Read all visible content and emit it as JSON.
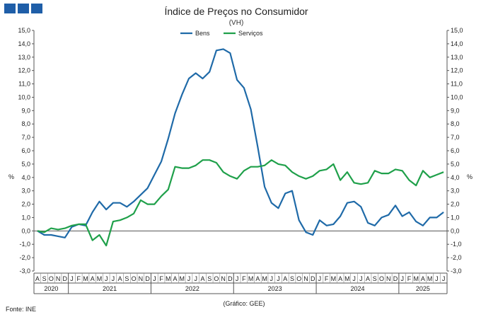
{
  "header": {
    "blocks": [
      "block-1",
      "block-2",
      "block-3"
    ],
    "block_color": "#1f5ea8"
  },
  "footer": {
    "source": "Fonte: INE",
    "credit": "(Gráfico: GEE)"
  },
  "chart_data": {
    "type": "line",
    "title": "Índice de Preços no Consumidor",
    "subtitle": "(VH)",
    "ylabel_left": "%",
    "ylabel_right": "%",
    "ylim": [
      -3,
      15
    ],
    "ytick_step": 1,
    "ytick_labels": [
      "-3,0",
      "-2,0",
      "-1,0",
      "0,0",
      "1,0",
      "2,0",
      "3,0",
      "4,0",
      "5,0",
      "6,0",
      "7,0",
      "8,0",
      "9,0",
      "10,0",
      "11,0",
      "12,0",
      "13,0",
      "14,0",
      "15,0"
    ],
    "grid": false,
    "legend_position": "top-center",
    "month_labels": [
      "A",
      "S",
      "O",
      "N",
      "D",
      "J",
      "F",
      "M",
      "A",
      "M",
      "J",
      "J",
      "A",
      "S",
      "O",
      "N",
      "D",
      "J",
      "F",
      "M",
      "A",
      "M",
      "J",
      "J",
      "A",
      "S",
      "O",
      "N",
      "D",
      "J",
      "F",
      "M",
      "A",
      "M",
      "J",
      "J",
      "A",
      "S",
      "O",
      "N",
      "D",
      "J",
      "F",
      "M",
      "A",
      "M",
      "J",
      "J",
      "A",
      "S",
      "O",
      "N",
      "D",
      "J",
      "F",
      "M",
      "A",
      "M",
      "J",
      "J"
    ],
    "years": [
      {
        "label": "2020",
        "start": 0,
        "end": 4
      },
      {
        "label": "2021",
        "start": 5,
        "end": 16
      },
      {
        "label": "2022",
        "start": 17,
        "end": 28
      },
      {
        "label": "2023",
        "start": 29,
        "end": 40
      },
      {
        "label": "2024",
        "start": 41,
        "end": 52
      },
      {
        "label": "2025",
        "start": 53,
        "end": 59
      }
    ],
    "series": [
      {
        "name": "Bens",
        "color": "#1f6aa8",
        "values": [
          0.0,
          -0.3,
          -0.3,
          -0.4,
          -0.5,
          0.3,
          0.5,
          0.4,
          1.4,
          2.2,
          1.6,
          2.1,
          2.1,
          1.8,
          2.2,
          2.7,
          3.2,
          4.2,
          5.2,
          6.9,
          8.8,
          10.2,
          11.4,
          11.8,
          11.4,
          11.9,
          13.5,
          13.6,
          13.3,
          11.3,
          10.7,
          9.1,
          6.3,
          3.3,
          2.1,
          1.7,
          2.8,
          3.0,
          0.8,
          -0.1,
          -0.3,
          0.8,
          0.4,
          0.5,
          1.1,
          2.1,
          2.2,
          1.8,
          0.6,
          0.4,
          1.0,
          1.2,
          1.9,
          1.1,
          1.4,
          0.7,
          0.4,
          1.0,
          1.0,
          1.4
        ]
      },
      {
        "name": "Serviços",
        "color": "#1fa04a",
        "values": [
          0.0,
          -0.1,
          0.2,
          0.1,
          0.2,
          0.4,
          0.5,
          0.5,
          -0.7,
          -0.3,
          -1.1,
          0.7,
          0.8,
          1.0,
          1.3,
          2.3,
          2.0,
          2.0,
          2.6,
          3.1,
          4.8,
          4.7,
          4.7,
          4.9,
          5.3,
          5.3,
          5.1,
          4.4,
          4.1,
          3.9,
          4.5,
          4.8,
          4.8,
          4.9,
          5.3,
          5.0,
          4.9,
          4.4,
          4.1,
          3.9,
          4.1,
          4.5,
          4.6,
          5.0,
          3.8,
          4.4,
          3.6,
          3.5,
          3.6,
          4.5,
          4.3,
          4.3,
          4.6,
          4.5,
          3.8,
          3.4,
          4.5,
          4.0,
          4.2,
          4.4
        ]
      }
    ]
  }
}
